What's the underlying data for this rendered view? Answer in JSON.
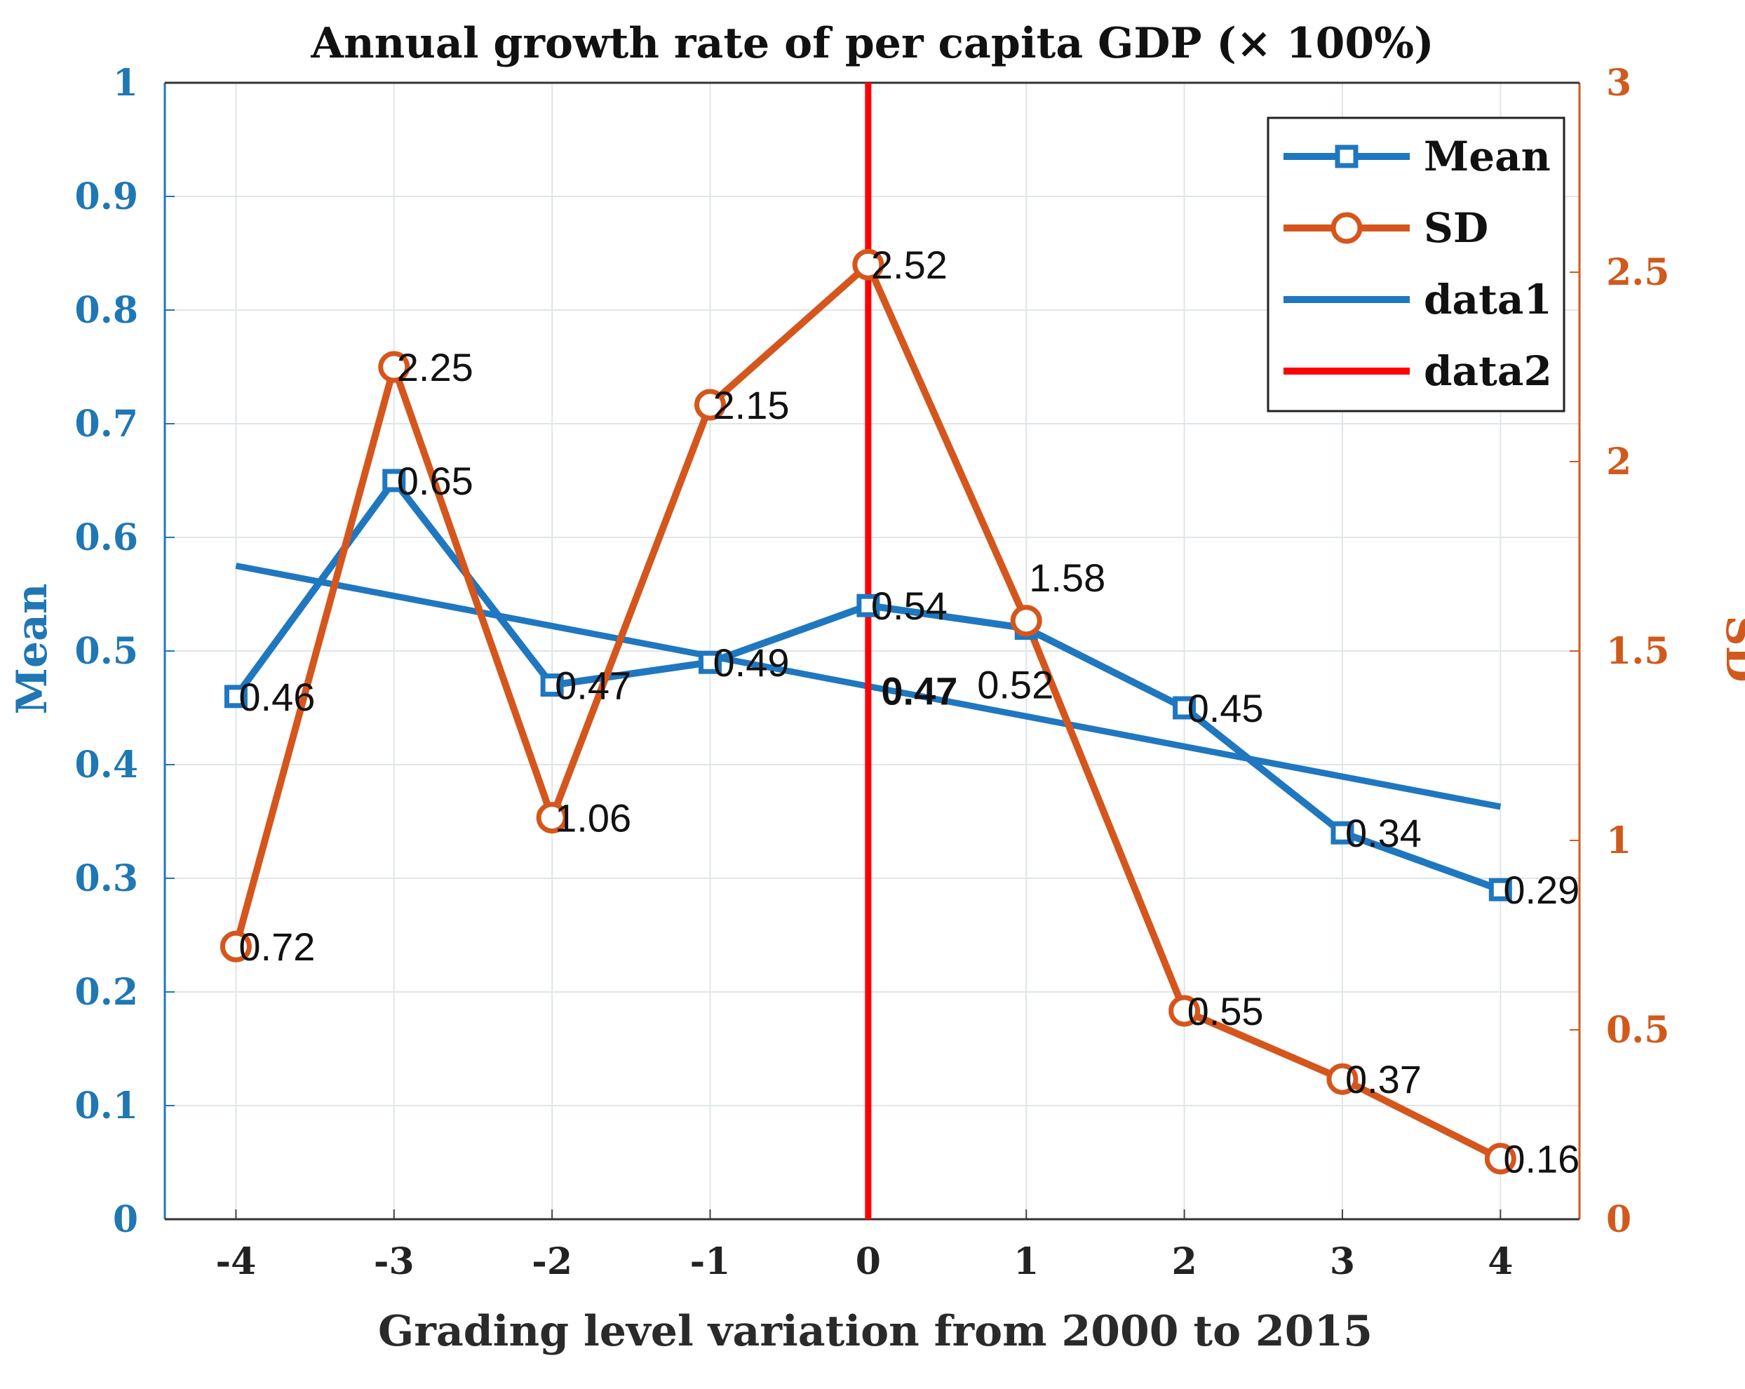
{
  "colors": {
    "mean": "#1f77c0",
    "sd": "#d5561c",
    "data1": "#1f77c0",
    "data2": "#ff0000",
    "grid": "#dfe5ea",
    "left_axis": "#1f77b4",
    "right_axis": "#d05a1c"
  },
  "chart_data": {
    "type": "line",
    "title": "Annual growth rate of per capita GDP (× 100%)",
    "xlabel": "Grading level variation from 2000 to 2015",
    "ylabel": "Mean",
    "y2label": "SD",
    "x": [
      -4,
      -3,
      -2,
      -1,
      0,
      1,
      2,
      3,
      4
    ],
    "xlim": [
      -4.45,
      4.5
    ],
    "ylim": [
      0,
      1
    ],
    "y2lim": [
      0,
      3
    ],
    "xticks": [
      "-4",
      "-3",
      "-2",
      "-1",
      "0",
      "1",
      "2",
      "3",
      "4"
    ],
    "yticks": [
      "0",
      "0.1",
      "0.2",
      "0.3",
      "0.4",
      "0.5",
      "0.6",
      "0.7",
      "0.8",
      "0.9",
      "1"
    ],
    "y2ticks": [
      "0",
      "0.5",
      "1",
      "1.5",
      "2",
      "2.5",
      "3"
    ],
    "grid": true,
    "legend_position": "top-right",
    "series": [
      {
        "name": "Mean",
        "axis": "left",
        "marker": "square",
        "values": [
          0.46,
          0.65,
          0.47,
          0.49,
          0.54,
          0.52,
          0.45,
          0.34,
          0.29
        ],
        "labels": [
          "0.46",
          "0.65",
          "0.47",
          "0.49",
          "0.54",
          "0.52",
          "0.45",
          "0.34",
          "0.29"
        ]
      },
      {
        "name": "SD",
        "axis": "right",
        "marker": "circle",
        "values": [
          0.72,
          2.25,
          1.06,
          2.15,
          2.52,
          1.58,
          0.55,
          0.37,
          0.16
        ],
        "labels": [
          "0.72",
          "2.25",
          "1.06",
          "2.15",
          "2.52",
          "1.58",
          "0.55",
          "0.37",
          "0.16"
        ]
      },
      {
        "name": "data1",
        "axis": "left",
        "marker": "none",
        "x": [
          -4,
          4
        ],
        "values": [
          0.575,
          0.363
        ]
      },
      {
        "name": "data2",
        "axis": "left",
        "marker": "none",
        "x": [
          0,
          0
        ],
        "values": [
          0,
          1
        ]
      }
    ],
    "annotations": [
      {
        "text": "0.47",
        "x": 0.1,
        "y": 0.465,
        "color": "#ff0000",
        "bold": true
      }
    ]
  }
}
